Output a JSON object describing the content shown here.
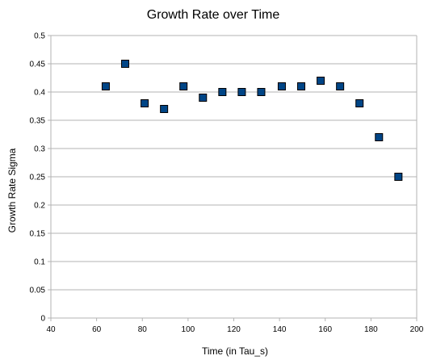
{
  "chart_data": {
    "type": "scatter",
    "title": "Growth Rate over Time",
    "xlabel": "Time (in Tau_s)",
    "ylabel": "Growth Rate Sigma",
    "xlim": [
      40,
      200
    ],
    "ylim": [
      0,
      0.5
    ],
    "x_ticks": [
      40,
      60,
      80,
      100,
      120,
      140,
      160,
      180,
      200
    ],
    "y_ticks": [
      0,
      0.05,
      0.1,
      0.15,
      0.2,
      0.25,
      0.3,
      0.35,
      0.4,
      0.45,
      0.5
    ],
    "grid": "horizontal",
    "legend": "none",
    "series": [
      {
        "marker": "square",
        "color": "#004586",
        "points": [
          {
            "x": 64,
            "y": 0.41
          },
          {
            "x": 72.5,
            "y": 0.45
          },
          {
            "x": 81,
            "y": 0.38
          },
          {
            "x": 89.5,
            "y": 0.37
          },
          {
            "x": 98,
            "y": 0.41
          },
          {
            "x": 106.5,
            "y": 0.39
          },
          {
            "x": 115,
            "y": 0.4
          },
          {
            "x": 123.5,
            "y": 0.4
          },
          {
            "x": 132,
            "y": 0.4
          },
          {
            "x": 141,
            "y": 0.41
          },
          {
            "x": 149.5,
            "y": 0.41
          },
          {
            "x": 158,
            "y": 0.42
          },
          {
            "x": 166.5,
            "y": 0.41
          },
          {
            "x": 175,
            "y": 0.38
          },
          {
            "x": 183.5,
            "y": 0.32
          },
          {
            "x": 192,
            "y": 0.25
          }
        ]
      }
    ]
  },
  "style": {
    "grid_color": "#b3b3b3",
    "axis_color": "#b3b3b3",
    "marker_stroke": "#000000"
  }
}
